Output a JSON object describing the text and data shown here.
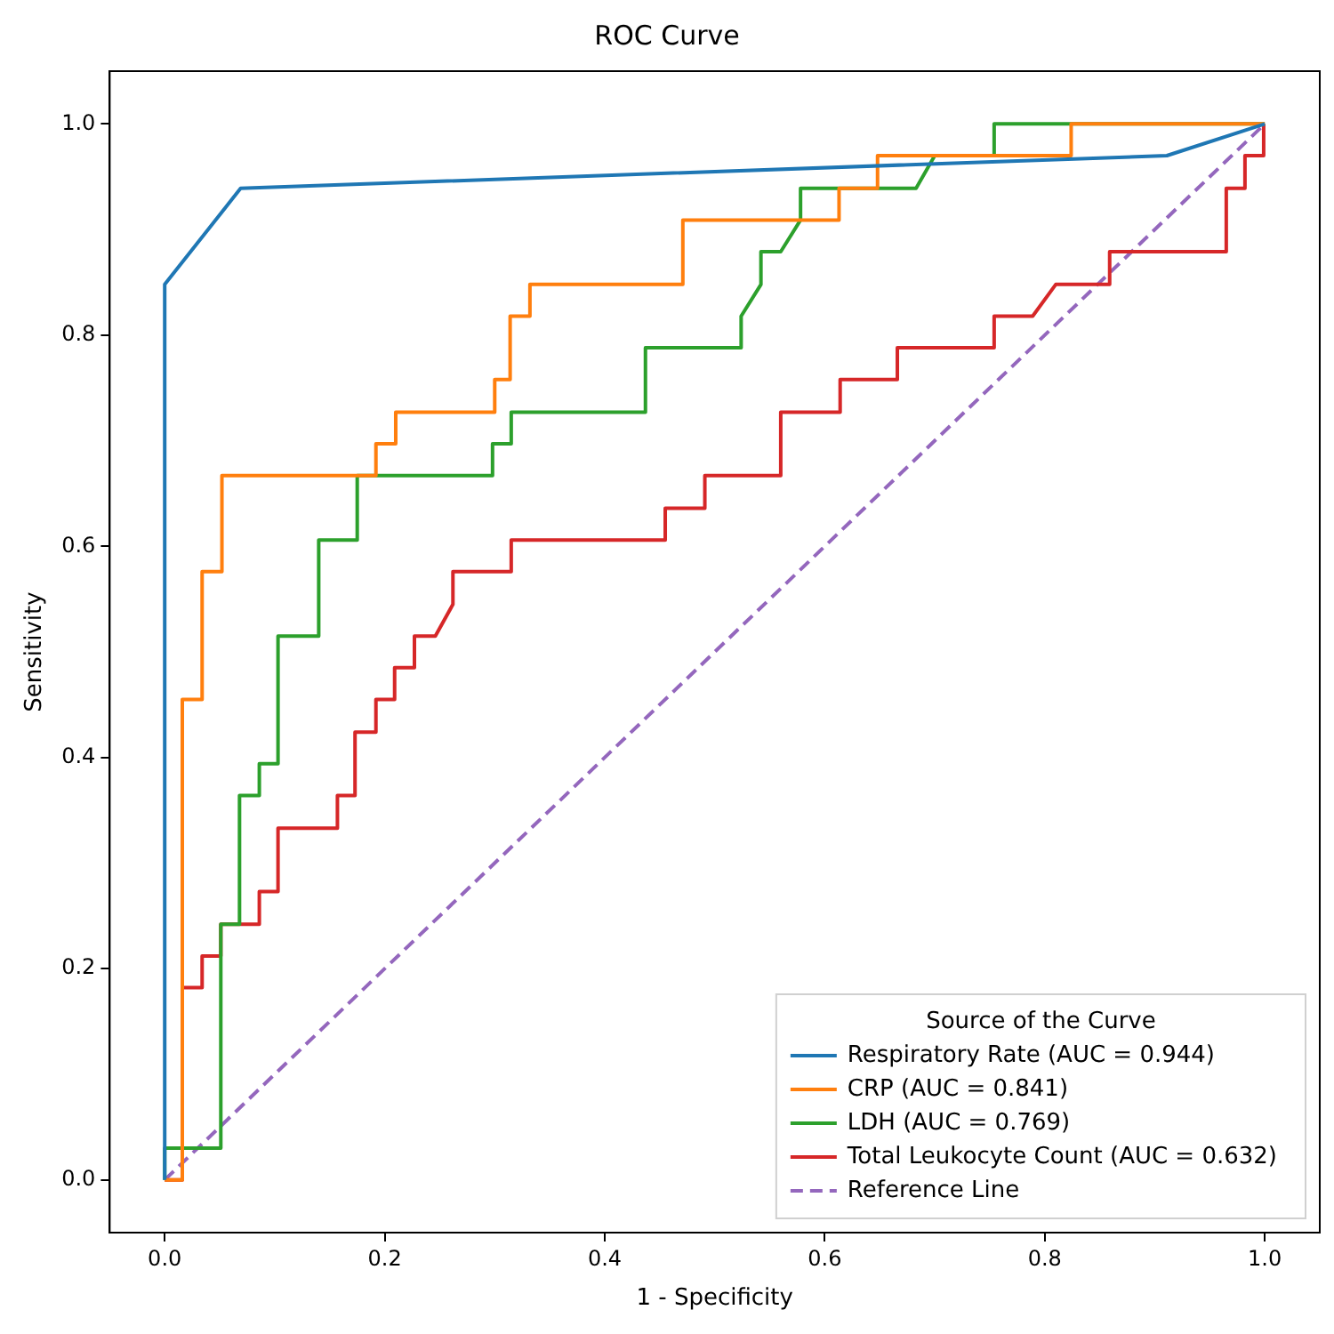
{
  "chart_data": {
    "type": "line",
    "title": "ROC Curve",
    "xlabel": "1 - Specificity",
    "ylabel": "Sensitivity",
    "legend_title": "Source of the Curve",
    "legend": "bottom right",
    "grid": false,
    "marker": "none",
    "xlim": [
      -0.05,
      1.05
    ],
    "ylim": [
      -0.05,
      1.05
    ],
    "xticks": [
      {
        "value": 0,
        "label": "0.0"
      },
      {
        "value": 0.2,
        "label": "0.2"
      },
      {
        "value": 0.4,
        "label": "0.4"
      },
      {
        "value": 0.6,
        "label": "0.6"
      },
      {
        "value": 0.8,
        "label": "0.8"
      },
      {
        "value": 1,
        "label": "1.0"
      }
    ],
    "yticks": [
      {
        "value": 0,
        "label": "0.0"
      },
      {
        "value": 0.2,
        "label": "0.2"
      },
      {
        "value": 0.4,
        "label": "0.4"
      },
      {
        "value": 0.6,
        "label": "0.6"
      },
      {
        "value": 0.8,
        "label": "0.8"
      },
      {
        "value": 1,
        "label": "1.0"
      }
    ],
    "series": [
      {
        "name": "Respiratory Rate (AUC = 0.944)",
        "color": "#1f77b4",
        "line_style": "solid",
        "x": [
          0,
          0,
          0.069,
          0.911,
          1
        ],
        "values": [
          0,
          0.848,
          0.939,
          0.97,
          1
        ]
      },
      {
        "name": "CRP (AUC = 0.841)",
        "color": "#ff7f0e",
        "line_style": "solid",
        "x": [
          0,
          0.016,
          0.016,
          0.034,
          0.034,
          0.052,
          0.052,
          0.192,
          0.192,
          0.21,
          0.21,
          0.3,
          0.3,
          0.314,
          0.314,
          0.332,
          0.332,
          0.471,
          0.471,
          0.613,
          0.613,
          0.648,
          0.648,
          0.824,
          0.824,
          1
        ],
        "values": [
          0,
          0,
          0.455,
          0.455,
          0.576,
          0.576,
          0.667,
          0.667,
          0.697,
          0.697,
          0.727,
          0.727,
          0.758,
          0.758,
          0.818,
          0.818,
          0.848,
          0.848,
          0.909,
          0.909,
          0.939,
          0.939,
          0.97,
          0.97,
          1,
          1
        ]
      },
      {
        "name": "LDH (AUC = 0.769)",
        "color": "#2ca02c",
        "line_style": "solid",
        "x": [
          0,
          0,
          0.051,
          0.051,
          0.068,
          0.068,
          0.086,
          0.086,
          0.103,
          0.103,
          0.14,
          0.14,
          0.175,
          0.175,
          0.298,
          0.298,
          0.315,
          0.315,
          0.437,
          0.437,
          0.524,
          0.524,
          0.542,
          0.542,
          0.56,
          0.578,
          0.578,
          0.683,
          0.7,
          0.754,
          0.754,
          1
        ],
        "values": [
          0,
          0.03,
          0.03,
          0.242,
          0.242,
          0.364,
          0.364,
          0.394,
          0.394,
          0.515,
          0.515,
          0.606,
          0.606,
          0.667,
          0.667,
          0.697,
          0.697,
          0.727,
          0.727,
          0.788,
          0.788,
          0.818,
          0.848,
          0.879,
          0.879,
          0.909,
          0.939,
          0.939,
          0.97,
          0.97,
          1,
          1
        ]
      },
      {
        "name": "Total Leukocyte Count (AUC = 0.632)",
        "color": "#d62728",
        "line_style": "solid",
        "x": [
          0,
          0.016,
          0.016,
          0.034,
          0.034,
          0.051,
          0.051,
          0.086,
          0.086,
          0.103,
          0.103,
          0.157,
          0.157,
          0.173,
          0.173,
          0.192,
          0.192,
          0.209,
          0.209,
          0.227,
          0.227,
          0.246,
          0.262,
          0.262,
          0.315,
          0.315,
          0.455,
          0.455,
          0.491,
          0.491,
          0.56,
          0.56,
          0.614,
          0.614,
          0.666,
          0.666,
          0.754,
          0.754,
          0.789,
          0.81,
          0.859,
          0.859,
          0.965,
          0.965,
          0.982,
          0.982,
          0.999,
          0.999
        ],
        "values": [
          0,
          0,
          0.182,
          0.182,
          0.212,
          0.212,
          0.242,
          0.242,
          0.273,
          0.273,
          0.333,
          0.333,
          0.364,
          0.364,
          0.424,
          0.424,
          0.455,
          0.455,
          0.485,
          0.485,
          0.515,
          0.515,
          0.545,
          0.576,
          0.576,
          0.606,
          0.606,
          0.636,
          0.636,
          0.667,
          0.667,
          0.727,
          0.727,
          0.758,
          0.758,
          0.788,
          0.788,
          0.818,
          0.818,
          0.848,
          0.848,
          0.879,
          0.879,
          0.939,
          0.939,
          0.97,
          0.97,
          1
        ]
      },
      {
        "name": "Reference Line",
        "color": "#9467bd",
        "line_style": "dashed",
        "x": [
          0,
          1
        ],
        "values": [
          0,
          1
        ]
      }
    ]
  }
}
